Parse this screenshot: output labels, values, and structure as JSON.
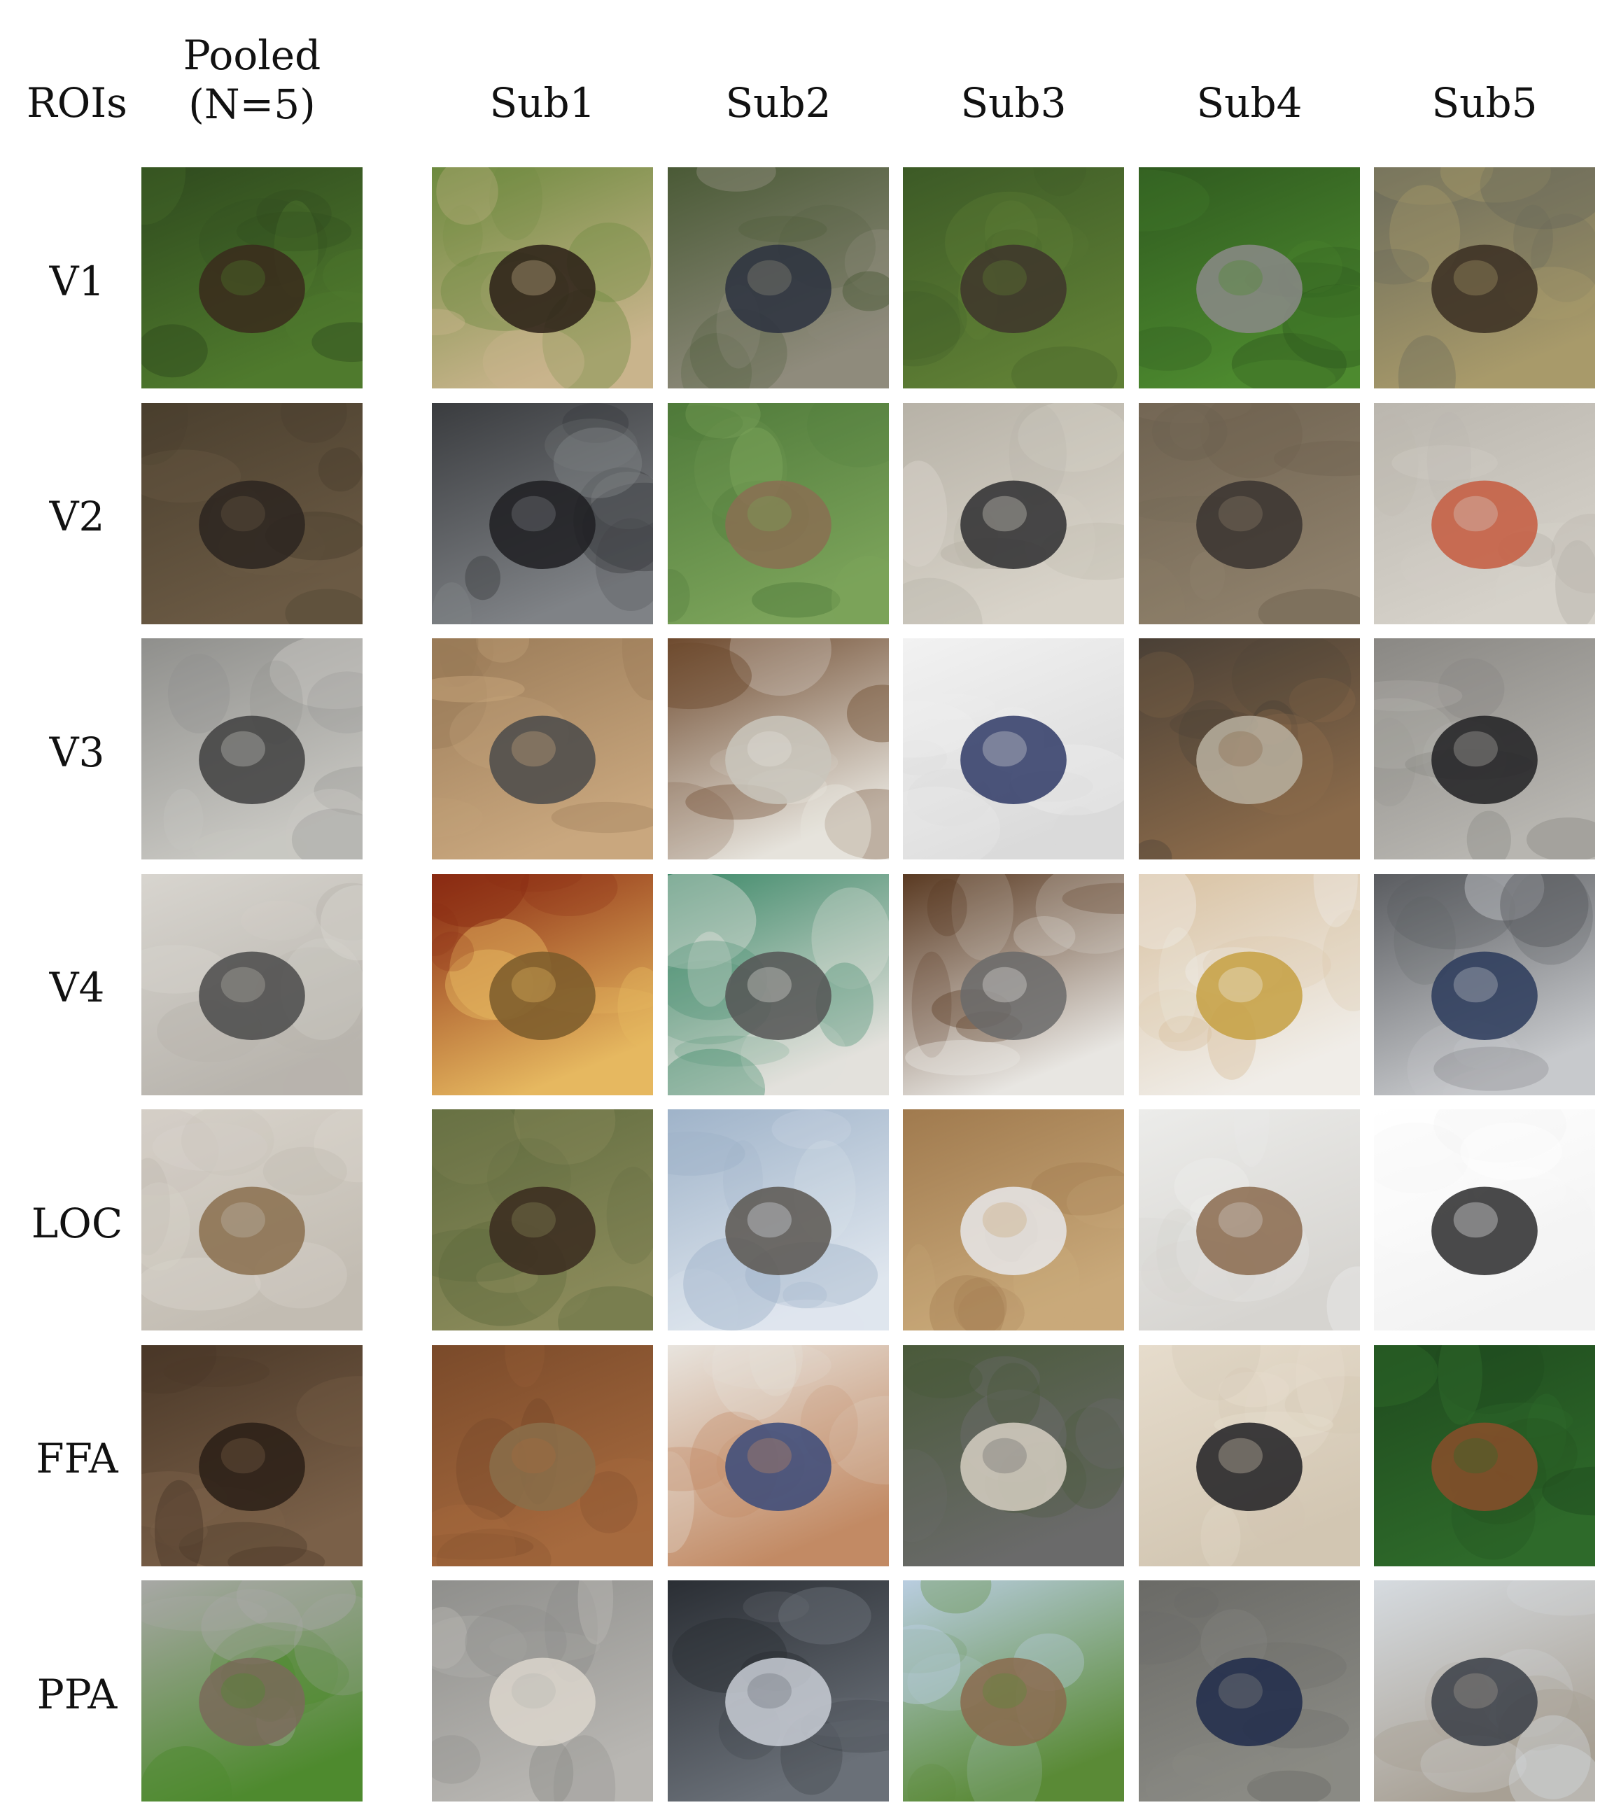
{
  "header": {
    "rois_label": "ROIs",
    "pooled_line1": "Pooled",
    "pooled_line2": "(N=5)",
    "subjects": [
      "Sub1",
      "Sub2",
      "Sub3",
      "Sub4",
      "Sub5"
    ]
  },
  "rows": [
    {
      "label": "V1",
      "cells": [
        {
          "icon": "forest-foliage-icon",
          "bg": "#2f4a1e",
          "bg2": "#4f7a2d",
          "fg": "#3a2a1c"
        },
        {
          "icon": "bison-icon",
          "bg": "#6d8a3e",
          "bg2": "#c9b48c",
          "fg": "#2a1f16"
        },
        {
          "icon": "person-on-cart-icon",
          "bg": "#4a5a36",
          "bg2": "#8f8b7c",
          "fg": "#2c3140"
        },
        {
          "icon": "bear-cub-icon",
          "bg": "#3c5a26",
          "bg2": "#5f7f35",
          "fg": "#3e352c"
        },
        {
          "icon": "metal-flower-icon",
          "bg": "#2f5a1f",
          "bg2": "#4d8a2f",
          "fg": "#8b8a88"
        },
        {
          "icon": "tribal-figures-icon",
          "bg": "#6a6a5a",
          "bg2": "#a89a6a",
          "fg": "#3a2e22"
        }
      ]
    },
    {
      "label": "V2",
      "cells": [
        {
          "icon": "tangled-debris-icon",
          "bg": "#4a3f2e",
          "bg2": "#6b5a44",
          "fg": "#2b2520"
        },
        {
          "icon": "scrap-metal-icon",
          "bg": "#3a3c3f",
          "bg2": "#7f8286",
          "fg": "#1f1f22"
        },
        {
          "icon": "insect-on-grass-icon",
          "bg": "#4f7a3a",
          "bg2": "#7ba35a",
          "fg": "#8a6e52"
        },
        {
          "icon": "ornate-object-icon",
          "bg": "#b7b2a7",
          "bg2": "#d8d3c9",
          "fg": "#2e2e30"
        },
        {
          "icon": "rusty-machine-icon",
          "bg": "#6e6250",
          "bg2": "#8d7f6a",
          "fg": "#3a3430"
        },
        {
          "icon": "stone-with-red-icon",
          "bg": "#bab6ae",
          "bg2": "#d6d2ca",
          "fg": "#c65a3e"
        }
      ]
    },
    {
      "label": "V3",
      "cells": [
        {
          "icon": "metal-boxes-icon",
          "bg": "#8f8f8c",
          "bg2": "#c9c8c3",
          "fg": "#3f3f3f"
        },
        {
          "icon": "appliance-table-icon",
          "bg": "#9a7b58",
          "bg2": "#c9a77e",
          "fg": "#4a4a4a"
        },
        {
          "icon": "white-bags-icon",
          "bg": "#6e4a2e",
          "bg2": "#e6e3dc",
          "fg": "#c9c5bc"
        },
        {
          "icon": "car-parts-icon",
          "bg": "#f2f2f2",
          "bg2": "#dadada",
          "fg": "#2f3a66"
        },
        {
          "icon": "shelf-items-icon",
          "bg": "#4a4036",
          "bg2": "#8a6a4a",
          "fg": "#b8b0a0"
        },
        {
          "icon": "bicycle-rack-icon",
          "bg": "#8a8884",
          "bg2": "#b7b5b0",
          "fg": "#202022"
        }
      ]
    },
    {
      "label": "V4",
      "cells": [
        {
          "icon": "control-panel-icon",
          "bg": "#d8d5cf",
          "bg2": "#b8b4ad",
          "fg": "#4a4a4a"
        },
        {
          "icon": "yellow-board-icon",
          "bg": "#8a2a12",
          "bg2": "#e6b860",
          "fg": "#7a5a2a"
        },
        {
          "icon": "retro-computer-icon",
          "bg": "#3f8a6a",
          "bg2": "#e3e1dc",
          "fg": "#555555"
        },
        {
          "icon": "device-panel-icon",
          "bg": "#5a3a22",
          "bg2": "#e8e6e2",
          "fg": "#6a6a6a"
        },
        {
          "icon": "white-plate-icon",
          "bg": "#d9c2a2",
          "bg2": "#f0ede8",
          "fg": "#c6a042"
        },
        {
          "icon": "steel-cabinet-icon",
          "bg": "#5a5c60",
          "bg2": "#c7c9cc",
          "fg": "#2a3a5a"
        }
      ]
    },
    {
      "label": "LOC",
      "cells": [
        {
          "icon": "bag-object-icon",
          "bg": "#d9d4cc",
          "bg2": "#c2bcb2",
          "fg": "#8a6e4e"
        },
        {
          "icon": "flying-bird-icon",
          "bg": "#5f6b3e",
          "bg2": "#8a8a5a",
          "fg": "#3a2a1e"
        },
        {
          "icon": "animal-statue-icon",
          "bg": "#9fb3c9",
          "bg2": "#dfe6ee",
          "fg": "#5a5650"
        },
        {
          "icon": "vehicle-front-icon",
          "bg": "#a07a4e",
          "bg2": "#c9a97a",
          "fg": "#e8e8ea"
        },
        {
          "icon": "ring-object-icon",
          "bg": "#ececea",
          "bg2": "#d6d4d0",
          "fg": "#8a6a4e"
        },
        {
          "icon": "engine-object-icon",
          "bg": "#ffffff",
          "bg2": "#f2f2f2",
          "fg": "#2a2a2c"
        }
      ]
    },
    {
      "label": "FFA",
      "cells": [
        {
          "icon": "monkey-face-icon",
          "bg": "#4a3828",
          "bg2": "#7a6048",
          "fg": "#2a1e16"
        },
        {
          "icon": "small-animal-icon",
          "bg": "#7a4a2a",
          "bg2": "#a66a3e",
          "fg": "#8a6e4a"
        },
        {
          "icon": "child-face-icon",
          "bg": "#e8e4de",
          "bg2": "#c28a64",
          "fg": "#3a4a7a"
        },
        {
          "icon": "man-with-dog-icon",
          "bg": "#4a5a3a",
          "bg2": "#6a6a6a",
          "fg": "#d6cfc2"
        },
        {
          "icon": "black-ape-icon",
          "bg": "#e6dccc",
          "bg2": "#d2c6b2",
          "fg": "#1e1e22"
        },
        {
          "icon": "animal-snout-icon",
          "bg": "#1f4a1e",
          "bg2": "#2e6a2a",
          "fg": "#8a4e2a"
        }
      ]
    },
    {
      "label": "PPA",
      "cells": [
        {
          "icon": "building-courtyard-icon",
          "bg": "#a8a8a6",
          "bg2": "#4e8a2e",
          "fg": "#7a6a5a"
        },
        {
          "icon": "furry-creature-icon",
          "bg": "#8f8f8c",
          "bg2": "#b8b6b2",
          "fg": "#dcd6cc"
        },
        {
          "icon": "tunnel-vehicle-icon",
          "bg": "#2a2e34",
          "bg2": "#6a7078",
          "fg": "#c9ced6"
        },
        {
          "icon": "cow-in-field-icon",
          "bg": "#b9cde0",
          "bg2": "#5a8a36",
          "fg": "#8a6a4e"
        },
        {
          "icon": "wrecked-car-icon",
          "bg": "#6a6a66",
          "bg2": "#8a8a84",
          "fg": "#1e2a4a"
        },
        {
          "icon": "street-car-icon",
          "bg": "#d6dbe0",
          "bg2": "#a8a094",
          "fg": "#3a3e46"
        }
      ]
    }
  ]
}
